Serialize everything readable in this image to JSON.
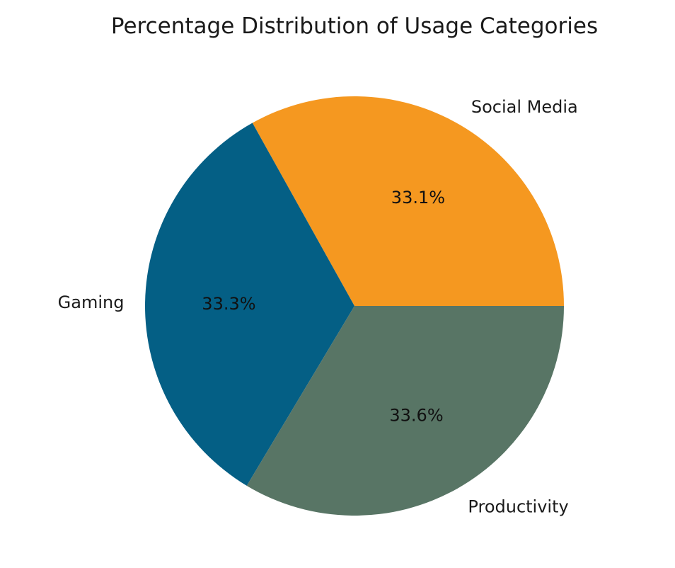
{
  "chart_data": {
    "type": "pie",
    "title": "Percentage Distribution of Usage Categories",
    "categories": [
      "Social Media",
      "Gaming",
      "Productivity"
    ],
    "values": [
      33.1,
      33.3,
      33.6
    ],
    "value_labels": [
      "33.1%",
      "33.3%",
      "33.6%"
    ],
    "colors": [
      "#F59820",
      "#045F85",
      "#587565"
    ],
    "start_angle_deg": 0,
    "direction": "counterclockwise"
  }
}
